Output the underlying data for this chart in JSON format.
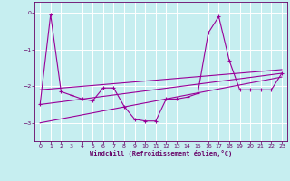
{
  "background_color": "#c6eef0",
  "line_color": "#990099",
  "grid_color": "#aadddd",
  "xlabel": "Windchill (Refroidissement éolien,°C)",
  "xlim": [
    -0.5,
    23.5
  ],
  "ylim": [
    -3.5,
    0.3
  ],
  "yticks": [
    0,
    -1,
    -2,
    -3
  ],
  "xticks": [
    0,
    1,
    2,
    3,
    4,
    5,
    6,
    7,
    8,
    9,
    10,
    11,
    12,
    13,
    14,
    15,
    16,
    17,
    18,
    19,
    20,
    21,
    22,
    23
  ],
  "main_x": [
    0,
    1,
    2,
    3,
    4,
    5,
    6,
    7,
    8,
    9,
    10,
    11,
    12,
    13,
    14,
    15,
    16,
    17,
    18,
    19,
    20,
    21,
    22,
    23
  ],
  "main_y": [
    -2.5,
    -0.05,
    -2.15,
    -2.25,
    -2.35,
    -2.4,
    -2.05,
    -2.05,
    -2.55,
    -2.9,
    -2.95,
    -2.95,
    -2.35,
    -2.35,
    -2.3,
    -2.2,
    -0.55,
    -0.1,
    -1.3,
    -2.1,
    -2.1,
    -2.1,
    -2.1,
    -1.65
  ],
  "trend_lines": [
    {
      "x0": 0,
      "y0": -2.1,
      "x1": 23,
      "y1": -1.55
    },
    {
      "x0": 0,
      "y0": -2.5,
      "x1": 23,
      "y1": -1.65
    },
    {
      "x0": 0,
      "y0": -3.0,
      "x1": 23,
      "y1": -1.75
    }
  ]
}
